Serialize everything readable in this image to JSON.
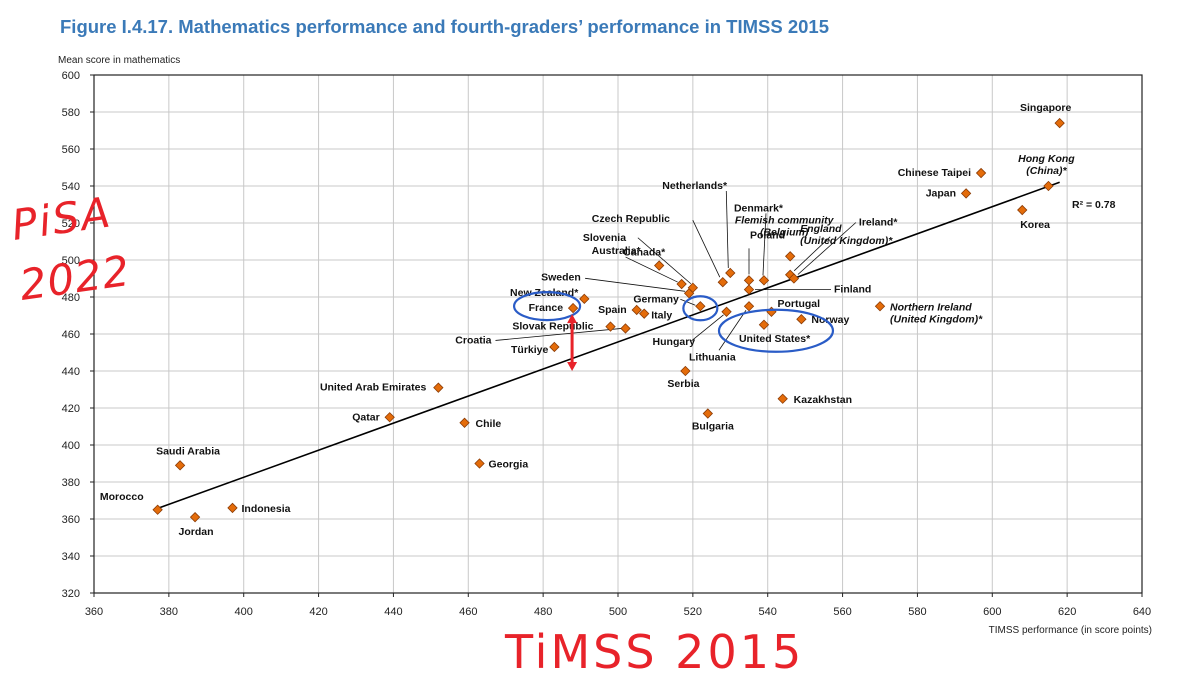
{
  "figure": {
    "title": "Figure I.4.17. Mathematics performance and fourth-graders’ performance in TIMSS 2015"
  },
  "colors": {
    "marker_fill": "#e46c0a",
    "marker_stroke": "#8a3b06",
    "axis": "#222222",
    "grid": "#c8c8c8",
    "annotation_blue": "#2a5cc7",
    "annotation_red": "#e8232a"
  },
  "annotations": {
    "handwritten_y": "PiSA 2022",
    "handwritten_x": "TiMSS 2015"
  },
  "chart_data": {
    "type": "scatter",
    "title": "Mathematics performance and fourth-graders’ performance in TIMSS 2015",
    "xlabel": "TIMSS performance (in score points)",
    "ylabel": "Mean score in mathematics",
    "xlim": [
      360,
      640
    ],
    "ylim": [
      320,
      600
    ],
    "xticks": [
      360,
      380,
      400,
      420,
      440,
      460,
      480,
      500,
      520,
      540,
      560,
      580,
      600,
      620,
      640
    ],
    "yticks": [
      320,
      340,
      360,
      380,
      400,
      420,
      440,
      460,
      480,
      500,
      520,
      540,
      560,
      580,
      600
    ],
    "grid": true,
    "r_squared": "R² = 0.78",
    "trendline": {
      "x": [
        376,
        618
      ],
      "y": [
        365,
        542
      ]
    },
    "points": [
      {
        "name": "Morocco",
        "x": 377,
        "y": 365
      },
      {
        "name": "Saudi Arabia",
        "x": 383,
        "y": 389
      },
      {
        "name": "Jordan",
        "x": 387,
        "y": 361
      },
      {
        "name": "Indonesia",
        "x": 397,
        "y": 366
      },
      {
        "name": "Qatar",
        "x": 439,
        "y": 415
      },
      {
        "name": "United Arab Emirates",
        "x": 452,
        "y": 431
      },
      {
        "name": "Chile",
        "x": 459,
        "y": 412
      },
      {
        "name": "Georgia",
        "x": 463,
        "y": 390
      },
      {
        "name": "Türkiye",
        "x": 483,
        "y": 453
      },
      {
        "name": "France",
        "x": 488,
        "y": 474
      },
      {
        "name": "New Zealand*",
        "x": 491,
        "y": 479
      },
      {
        "name": "Slovak Republic",
        "x": 498,
        "y": 464
      },
      {
        "name": "Croatia",
        "x": 502,
        "y": 463
      },
      {
        "name": "Spain",
        "x": 505,
        "y": 473
      },
      {
        "name": "Italy",
        "x": 507,
        "y": 471
      },
      {
        "name": "Canada*",
        "x": 511,
        "y": 497
      },
      {
        "name": "Serbia",
        "x": 518,
        "y": 440
      },
      {
        "name": "Australia*",
        "x": 517,
        "y": 487
      },
      {
        "name": "Sweden",
        "x": 519,
        "y": 482
      },
      {
        "name": "Slovenia",
        "x": 520,
        "y": 485
      },
      {
        "name": "Germany",
        "x": 522,
        "y": 475
      },
      {
        "name": "Bulgaria",
        "x": 524,
        "y": 417
      },
      {
        "name": "Hungary",
        "x": 529,
        "y": 472
      },
      {
        "name": "Czech Republic",
        "x": 528,
        "y": 488
      },
      {
        "name": "Netherlands*",
        "x": 530,
        "y": 493
      },
      {
        "name": "Poland",
        "x": 535,
        "y": 489
      },
      {
        "name": "Lithuania",
        "x": 535,
        "y": 475
      },
      {
        "name": "Finland",
        "x": 535,
        "y": 484
      },
      {
        "name": "Denmark*",
        "x": 539,
        "y": 489
      },
      {
        "name": "United States*",
        "x": 539,
        "y": 465
      },
      {
        "name": "Portugal",
        "x": 541,
        "y": 472
      },
      {
        "name": "Kazakhstan",
        "x": 544,
        "y": 425
      },
      {
        "name": "Flemish community (Belgium)",
        "x": 546,
        "y": 502
      },
      {
        "name": "England (United Kingdom)*",
        "x": 546,
        "y": 492
      },
      {
        "name": "Ireland*",
        "x": 547,
        "y": 490
      },
      {
        "name": "Norway",
        "x": 549,
        "y": 468
      },
      {
        "name": "Northern Ireland (United Kingdom)*",
        "x": 570,
        "y": 475
      },
      {
        "name": "Japan",
        "x": 593,
        "y": 536
      },
      {
        "name": "Chinese Taipei",
        "x": 597,
        "y": 547
      },
      {
        "name": "Korea",
        "x": 608,
        "y": 527
      },
      {
        "name": "Hong Kong (China)*",
        "x": 615,
        "y": 540
      },
      {
        "name": "Singapore",
        "x": 618,
        "y": 574
      }
    ]
  }
}
